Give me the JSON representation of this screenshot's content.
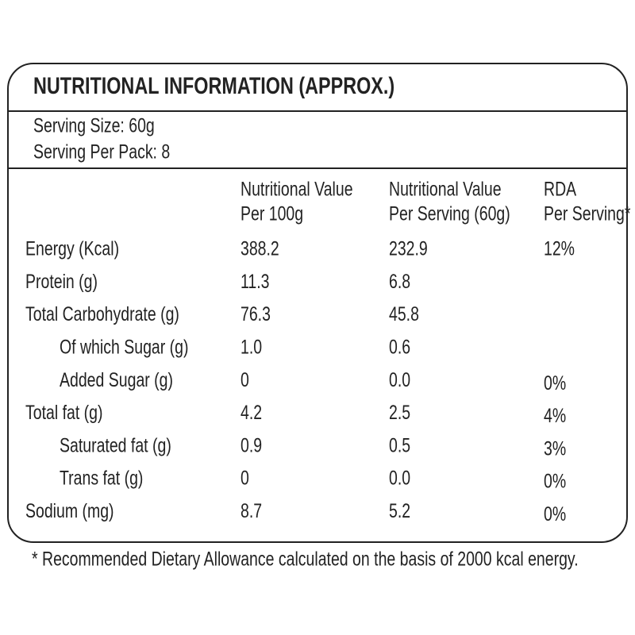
{
  "title": "NUTRITIONAL INFORMATION (APPROX.)",
  "serving": [
    "Serving Size: 60g",
    "Serving Per Pack: 8"
  ],
  "table": {
    "header": [
      {
        "line1": "Nutritional Value",
        "line2": "Per 100g"
      },
      {
        "line1": "Nutritional Value",
        "line2": "Per Serving (60g)"
      },
      {
        "line1": "RDA",
        "line2": "Per Serving*"
      }
    ],
    "rows": [
      {
        "label": "Energy (Kcal)",
        "indent": false,
        "cells": [
          "388.2",
          "232.9",
          "12%"
        ]
      },
      {
        "label": "Protein (g)",
        "indent": false,
        "cells": [
          "11.3",
          "6.8",
          null
        ]
      },
      {
        "label": "Total Carbohydrate (g)",
        "indent": false,
        "cells": [
          "76.3",
          "45.8",
          null
        ]
      },
      {
        "label": "Of which Sugar (g)",
        "indent": true,
        "cells": [
          "1.0",
          "0.6",
          null
        ]
      },
      {
        "label": "Added Sugar (g)",
        "indent": true,
        "cells": [
          "0",
          "0.0",
          "0%"
        ]
      },
      {
        "label": "Total fat (g)",
        "indent": false,
        "cells": [
          "4.2",
          "2.5",
          "4%"
        ]
      },
      {
        "label": "Saturated fat (g)",
        "indent": true,
        "cells": [
          "0.9",
          "0.5",
          "3%"
        ]
      },
      {
        "label": "Trans fat (g)",
        "indent": true,
        "cells": [
          "0",
          "0.0",
          "0%"
        ]
      },
      {
        "label": "Sodium (mg)",
        "indent": false,
        "cells": [
          "8.7",
          "5.2",
          "0%"
        ]
      }
    ]
  },
  "footnote": "* Recommended Dietary Allowance calculated on the basis of 2000 kcal energy."
}
